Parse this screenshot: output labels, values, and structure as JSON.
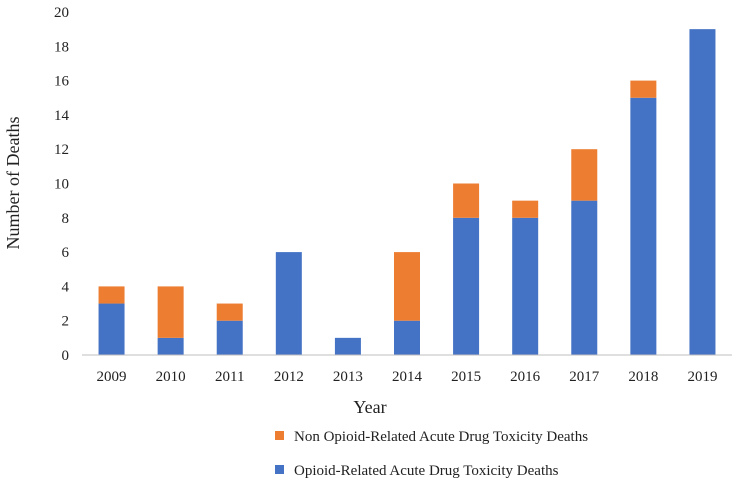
{
  "chart_data": {
    "type": "bar",
    "stacked": true,
    "title": "",
    "xlabel": "Year",
    "ylabel": "Number of Deaths",
    "ylim": [
      0,
      20
    ],
    "yticks": [
      0,
      2,
      4,
      6,
      8,
      10,
      12,
      14,
      16,
      18,
      20
    ],
    "grid": false,
    "legend_position": "bottom",
    "categories": [
      "2009",
      "2010",
      "2011",
      "2012",
      "2013",
      "2014",
      "2015",
      "2016",
      "2017",
      "2018",
      "2019"
    ],
    "series": [
      {
        "name": "Opioid-Related Acute Drug Toxicity Deaths",
        "color": "#4472C4",
        "values": [
          3,
          1,
          2,
          6,
          1,
          2,
          8,
          8,
          9,
          15,
          19
        ]
      },
      {
        "name": "Non Opioid-Related Acute Drug Toxicity Deaths",
        "color": "#ED7D31",
        "values": [
          1,
          3,
          1,
          0,
          0,
          4,
          2,
          1,
          3,
          1,
          0
        ]
      }
    ]
  }
}
